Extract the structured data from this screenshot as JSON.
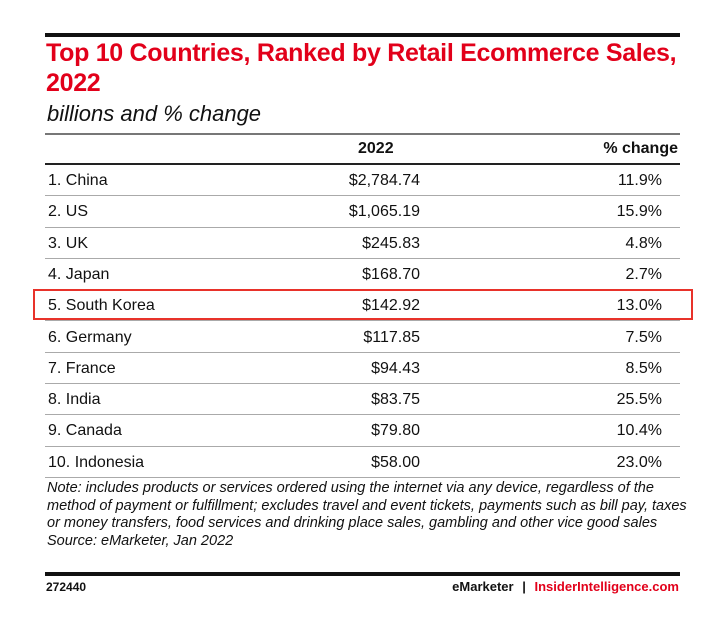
{
  "chart_data": {
    "type": "table",
    "title": "Top 10 Countries, Ranked by Retail Ecommerce Sales, 2022",
    "subtitle": "billions and % change",
    "columns": [
      "",
      "2022",
      "% change"
    ],
    "rows": [
      [
        "1. China",
        "$2,784.74",
        "11.9%"
      ],
      [
        "2. US",
        "$1,065.19",
        "15.9%"
      ],
      [
        "3. UK",
        "$245.83",
        "4.8%"
      ],
      [
        "4. Japan",
        "$168.70",
        "2.7%"
      ],
      [
        "5. South Korea",
        "$142.92",
        "13.0%"
      ],
      [
        "6. Germany",
        "$117.85",
        "7.5%"
      ],
      [
        "7. France",
        "$94.43",
        "8.5%"
      ],
      [
        "8. India",
        "$83.75",
        "25.5%"
      ],
      [
        "9. Canada",
        "$79.80",
        "10.4%"
      ],
      [
        "10. Indonesia",
        "$58.00",
        "23.0%"
      ]
    ],
    "highlighted_row": 4,
    "note": "Note: includes products or services ordered using the internet via any device, regardless of the method of payment or fulfillment; excludes travel and event tickets, payments such as bill pay, taxes or money transfers, food services and drinking place sales, gambling and other vice good sales",
    "source": "Source: eMarketer, Jan 2022"
  },
  "footer": {
    "id": "272440",
    "brand": "eMarketer",
    "separator": "|",
    "site": "InsiderIntelligence.com"
  },
  "colors": {
    "accent": "#e2001a",
    "highlight": "#e8322a"
  }
}
